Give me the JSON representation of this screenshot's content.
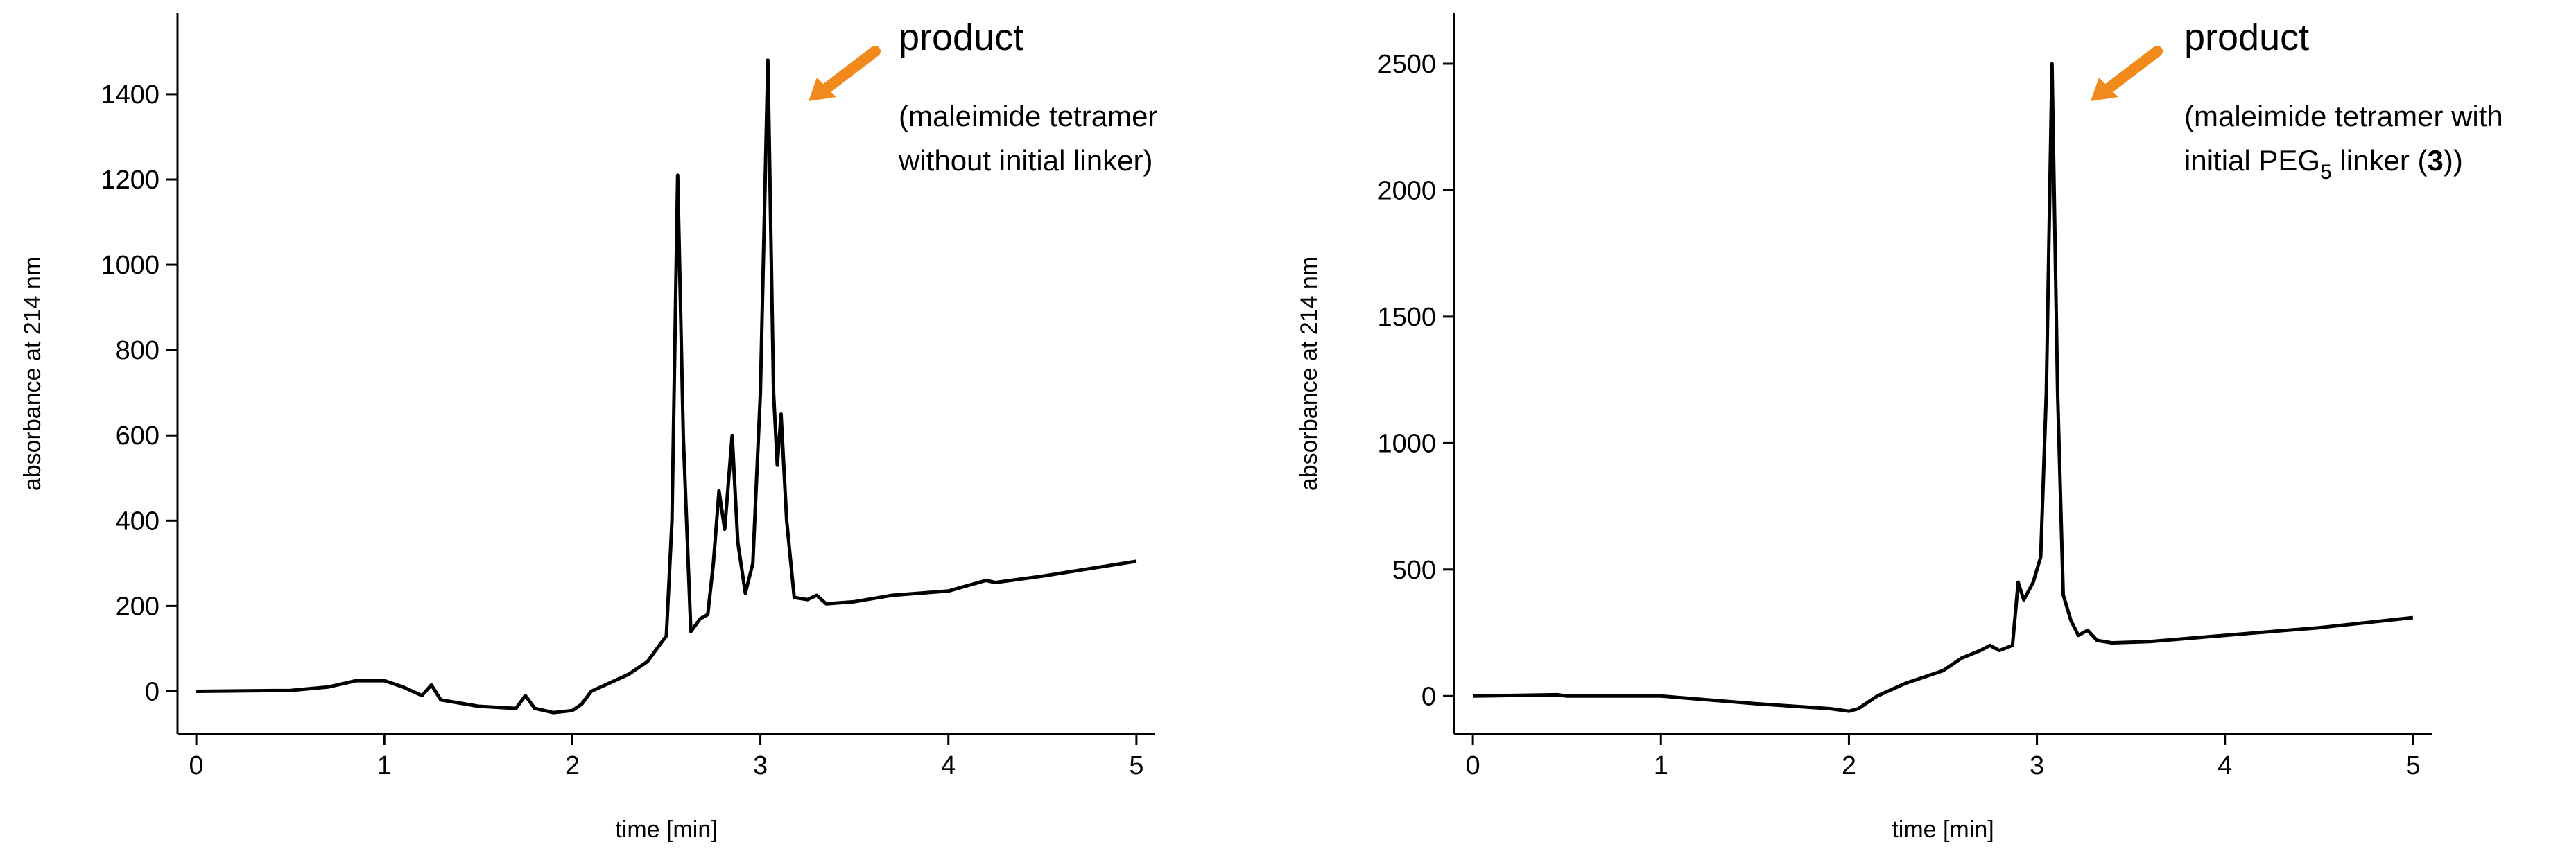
{
  "chart_data": [
    {
      "type": "line",
      "xlabel": "time [min]",
      "ylabel": "absorbance at 214 nm",
      "annotation_title": "product",
      "annotation_lines": [
        "(maleimide tetramer",
        "without initial linker)"
      ],
      "color": "#000000",
      "x": [
        0,
        0.5,
        0.7,
        0.85,
        1.0,
        1.1,
        1.2,
        1.25,
        1.3,
        1.5,
        1.7,
        1.75,
        1.8,
        1.9,
        2.0,
        2.05,
        2.1,
        2.2,
        2.3,
        2.4,
        2.45,
        2.5,
        2.53,
        2.56,
        2.59,
        2.63,
        2.68,
        2.72,
        2.75,
        2.78,
        2.81,
        2.85,
        2.88,
        2.92,
        2.96,
        3.0,
        3.04,
        3.07,
        3.09,
        3.11,
        3.14,
        3.18,
        3.25,
        3.3,
        3.35,
        3.5,
        3.7,
        4.0,
        4.2,
        4.25,
        4.5,
        5.0
      ],
      "values": [
        0,
        2,
        10,
        25,
        25,
        10,
        -10,
        15,
        -20,
        -35,
        -40,
        -10,
        -40,
        -50,
        -45,
        -30,
        0,
        20,
        40,
        70,
        100,
        130,
        400,
        1210,
        600,
        140,
        170,
        180,
        300,
        470,
        380,
        600,
        350,
        230,
        300,
        700,
        1480,
        700,
        530,
        650,
        400,
        220,
        215,
        225,
        205,
        210,
        225,
        235,
        260,
        255,
        270,
        305
      ],
      "xlim": [
        -0.1,
        5.1
      ],
      "xticks": [
        0,
        1,
        2,
        3,
        4,
        5
      ],
      "ylim": [
        -100,
        1590
      ],
      "yticks": [
        0,
        200,
        400,
        600,
        800,
        1000,
        1200,
        1400
      ]
    },
    {
      "type": "line",
      "xlabel": "time [min]",
      "ylabel": "absorbance at 214 nm",
      "annotation_title": "product",
      "annotation_lines": [
        "(maleimide tetramer with",
        [
          "initial PEG",
          "5",
          " linker (",
          "3",
          "))"
        ]
      ],
      "color": "#000000",
      "x": [
        0,
        0.45,
        0.5,
        1.0,
        1.5,
        1.9,
        2.0,
        2.05,
        2.15,
        2.3,
        2.5,
        2.6,
        2.7,
        2.75,
        2.8,
        2.87,
        2.9,
        2.93,
        2.98,
        3.02,
        3.05,
        3.08,
        3.11,
        3.14,
        3.18,
        3.22,
        3.27,
        3.32,
        3.4,
        3.6,
        4.0,
        4.5,
        5.0
      ],
      "values": [
        0,
        5,
        0,
        0,
        -30,
        -50,
        -60,
        -50,
        0,
        50,
        100,
        150,
        180,
        200,
        180,
        200,
        450,
        380,
        450,
        550,
        1200,
        2500,
        1200,
        400,
        300,
        240,
        260,
        220,
        210,
        215,
        240,
        270,
        310
      ],
      "xlim": [
        -0.1,
        5.1
      ],
      "xticks": [
        0,
        1,
        2,
        3,
        4,
        5
      ],
      "ylim": [
        -150,
        2700
      ],
      "yticks": [
        0,
        500,
        1000,
        1500,
        2000,
        2500
      ]
    }
  ]
}
